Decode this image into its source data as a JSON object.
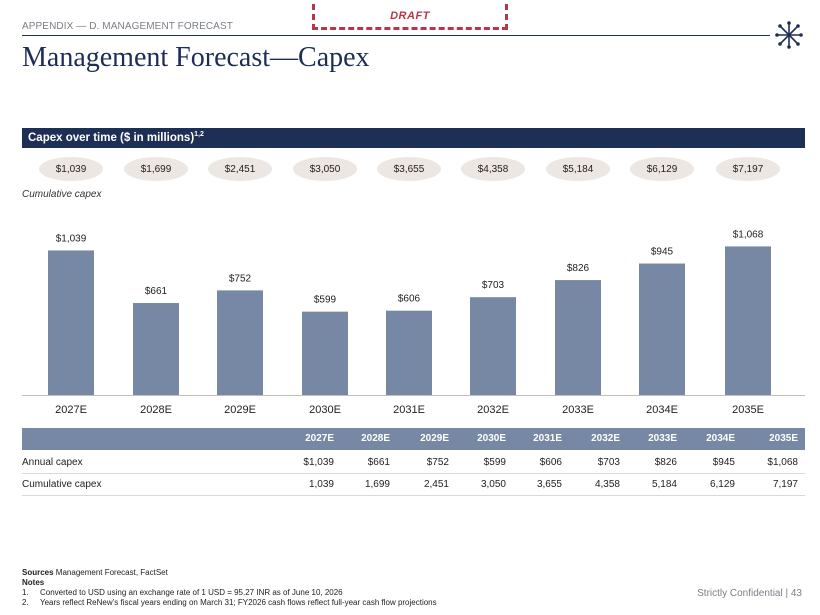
{
  "header": {
    "section_label": "APPENDIX — D. MANAGEMENT FORECAST",
    "draft_label": "DRAFT",
    "title": "Management Forecast—Capex",
    "logo_icon": "asterisk-logo-icon"
  },
  "banner": {
    "text": "Capex over time ($ in millions)",
    "superscript": "1,2"
  },
  "cumulative": {
    "label": "Cumulative capex",
    "pills": [
      "$1,039",
      "$1,699",
      "$2,451",
      "$3,050",
      "$3,655",
      "$4,358",
      "$5,184",
      "$6,129",
      "$7,197"
    ]
  },
  "chart_data": {
    "type": "bar",
    "categories": [
      "2027E",
      "2028E",
      "2029E",
      "2030E",
      "2031E",
      "2032E",
      "2033E",
      "2034E",
      "2035E"
    ],
    "values": [
      1039,
      661,
      752,
      599,
      606,
      703,
      826,
      945,
      1068
    ],
    "value_labels": [
      "$1,039",
      "$661",
      "$752",
      "$599",
      "$606",
      "$703",
      "$826",
      "$945",
      "$1,068"
    ],
    "title": "",
    "xlabel": "",
    "ylabel": "",
    "ylim": [
      0,
      1150
    ],
    "grid": false,
    "bar_color": "#7788a4"
  },
  "table": {
    "headers": [
      "2027E",
      "2028E",
      "2029E",
      "2030E",
      "2031E",
      "2032E",
      "2033E",
      "2034E",
      "2035E"
    ],
    "rows": [
      {
        "label": "Annual capex",
        "values": [
          "$1,039",
          "$661",
          "$752",
          "$599",
          "$606",
          "$703",
          "$826",
          "$945",
          "$1,068"
        ]
      },
      {
        "label": "Cumulative capex",
        "values": [
          "1,039",
          "1,699",
          "2,451",
          "3,050",
          "3,655",
          "4,358",
          "5,184",
          "6,129",
          "7,197"
        ]
      }
    ]
  },
  "footer": {
    "sources_label": "Sources",
    "sources_text": " Management Forecast, FactSet",
    "notes_label": "Notes",
    "notes": [
      {
        "num": "1.",
        "text": "Converted to USD using an exchange rate of 1 USD = 95.27 INR as of June 10, 2026"
      },
      {
        "num": "2.",
        "text": "Years reflect ReNew’s fiscal years ending on March 31; FY2026 cash flows reflect full-year cash flow projections"
      }
    ],
    "confidential": "Strictly Confidential | 43"
  },
  "colors": {
    "navy": "#1e2f55",
    "bar": "#7788a4",
    "pill": "#ece7e2",
    "draft": "#b8364a"
  }
}
